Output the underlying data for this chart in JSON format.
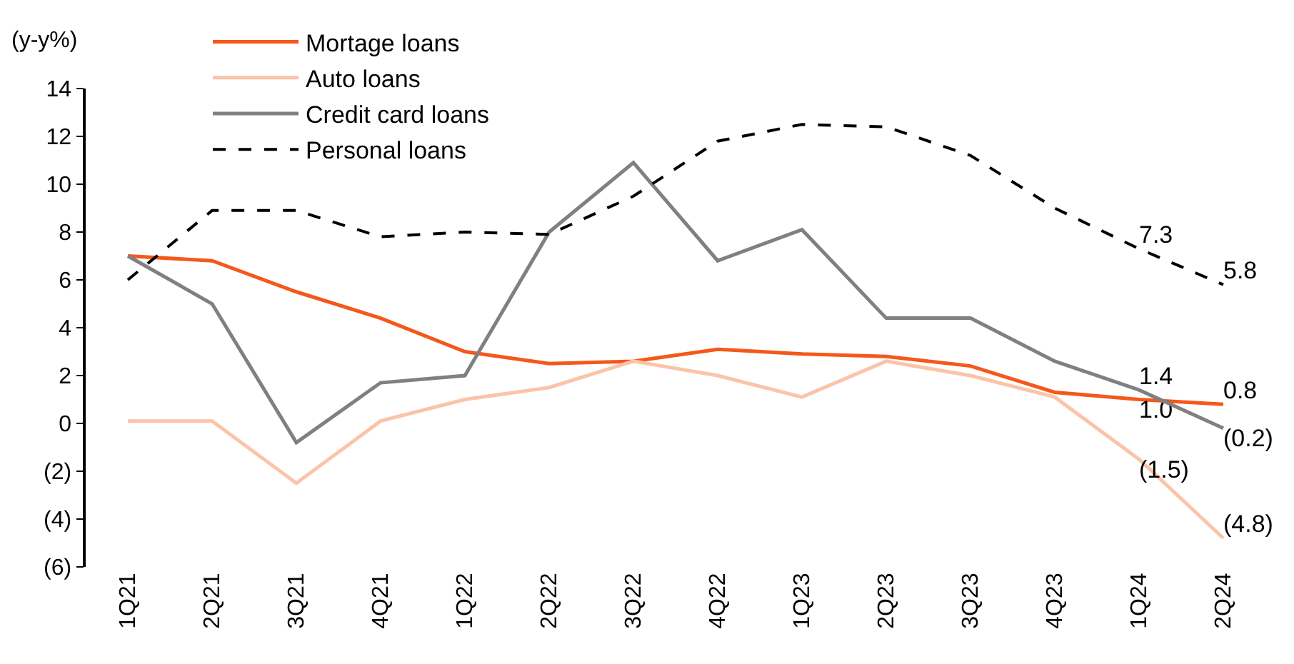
{
  "chart_data": {
    "type": "line",
    "ylabel": "(y-y%)",
    "categories": [
      "1Q21",
      "2Q21",
      "3Q21",
      "4Q21",
      "1Q22",
      "2Q22",
      "3Q22",
      "4Q22",
      "1Q23",
      "2Q23",
      "3Q23",
      "4Q23",
      "1Q24",
      "2Q24"
    ],
    "series": [
      {
        "name": "Mortage loans",
        "color": "#f4581b",
        "values": [
          7.0,
          6.8,
          5.5,
          4.4,
          3.0,
          2.5,
          2.6,
          3.1,
          2.9,
          2.8,
          2.4,
          1.3,
          1.0,
          0.8
        ],
        "value_labels": [
          null,
          null,
          null,
          null,
          null,
          null,
          null,
          null,
          null,
          null,
          null,
          null,
          "1.0",
          "0.8"
        ]
      },
      {
        "name": "Auto loans",
        "color": "#fbc4a8",
        "values": [
          0.1,
          0.1,
          -2.5,
          0.1,
          1.0,
          1.5,
          2.6,
          2.0,
          1.1,
          2.6,
          2.0,
          1.1,
          -1.5,
          -4.8
        ],
        "value_labels": [
          null,
          null,
          null,
          null,
          null,
          null,
          null,
          null,
          null,
          null,
          null,
          null,
          "(1.5)",
          "(4.8)"
        ]
      },
      {
        "name": "Credit card loans",
        "color": "#808080",
        "values": [
          7.0,
          5.0,
          -0.8,
          1.7,
          2.0,
          8.0,
          10.9,
          6.8,
          8.1,
          4.4,
          4.4,
          2.6,
          1.4,
          -0.2
        ],
        "value_labels": [
          null,
          null,
          null,
          null,
          null,
          null,
          null,
          null,
          null,
          null,
          null,
          null,
          "1.4",
          "(0.2)"
        ]
      },
      {
        "name": "Personal loans",
        "color": "#000000",
        "line_style": "dashed",
        "values": [
          6.0,
          8.9,
          8.9,
          7.8,
          8.0,
          7.9,
          9.5,
          11.8,
          12.5,
          12.4,
          11.2,
          9.0,
          7.3,
          5.8
        ],
        "value_labels": [
          null,
          null,
          null,
          null,
          null,
          null,
          null,
          null,
          null,
          null,
          null,
          null,
          "7.3",
          "5.8"
        ]
      }
    ],
    "ylim": [
      -6,
      14
    ],
    "yticks": [
      {
        "value": -6,
        "label": "(6)"
      },
      {
        "value": -4,
        "label": "(4)"
      },
      {
        "value": -2,
        "label": "(2)"
      },
      0,
      2,
      4,
      6,
      8,
      10,
      12,
      14
    ],
    "grid": false,
    "legend": "top",
    "marker": "none",
    "line_style": "solid"
  }
}
